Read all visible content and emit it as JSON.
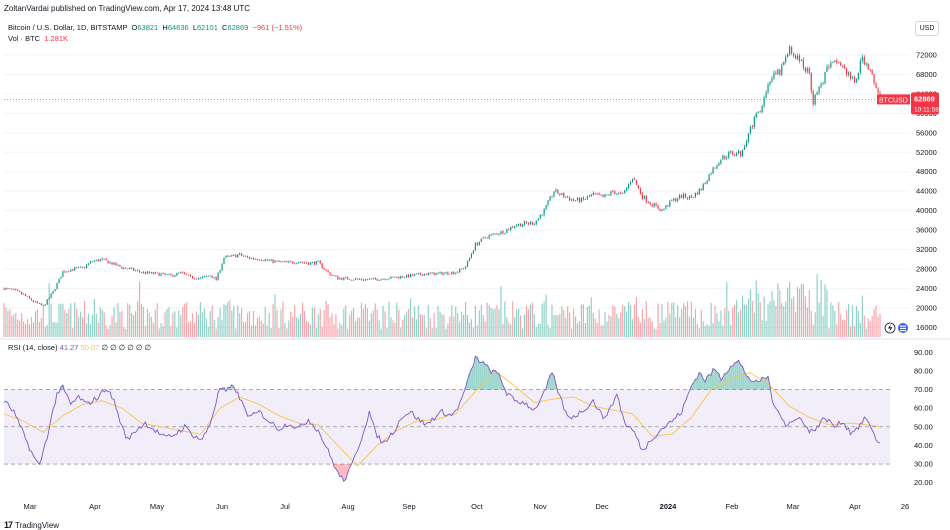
{
  "header": {
    "text": "ZoltanVardai published on TradingView.com, Apr 17, 2024 13:48 UTC"
  },
  "legend": {
    "symbol": "Bitcoin / U.S. Dollar, 1D, BITSTAMP",
    "open_label": "O",
    "open": "63821",
    "high_label": "H",
    "high": "64636",
    "low_label": "L",
    "low": "62101",
    "close_label": "C",
    "close": "62869",
    "change": "−961 (−1.51%)",
    "vol_label": "Vol · BTC",
    "vol": "1.281K"
  },
  "rsi_legend": {
    "label": "RSI (14, close)",
    "v1": "41.27",
    "v2": "50.07",
    "placeholders": "∅ ∅ ∅ ∅ ∅ ∅"
  },
  "currency_button": "USD",
  "price_tag": {
    "symbol": "BTCUSD",
    "price": "62869",
    "countdown": "10:11:58"
  },
  "footer": {
    "logo": "17",
    "brand": "TradingView"
  },
  "colors": {
    "up": "#089981",
    "down": "#f23645",
    "rsi": "#7e57c2",
    "rsi_ma": "#f5c451",
    "band": "#7e57c2"
  },
  "chart_data": {
    "type": "candlestick",
    "price_axis": {
      "ticks": [
        72000,
        68000,
        64000,
        60000,
        56000,
        52000,
        48000,
        44000,
        40000,
        36000,
        32000,
        28000,
        24000,
        20000,
        16000
      ],
      "ylim": [
        14000,
        75500
      ]
    },
    "x_ticks": [
      "Mar",
      "Apr",
      "May",
      "Jun",
      "Jul",
      "Aug",
      "Sep",
      "Oct",
      "Nov",
      "Dec",
      "2024",
      "Feb",
      "Mar",
      "Apr",
      "26"
    ],
    "close_series": [
      [
        0,
        24000
      ],
      [
        5,
        23600
      ],
      [
        10,
        22700
      ],
      [
        15,
        21300
      ],
      [
        20,
        20300
      ],
      [
        25,
        23300
      ],
      [
        30,
        27400
      ],
      [
        35,
        28000
      ],
      [
        40,
        28200
      ],
      [
        45,
        29600
      ],
      [
        50,
        29900
      ],
      [
        55,
        29100
      ],
      [
        60,
        28300
      ],
      [
        65,
        27900
      ],
      [
        70,
        27300
      ],
      [
        75,
        27100
      ],
      [
        80,
        26900
      ],
      [
        85,
        26600
      ],
      [
        90,
        27200
      ],
      [
        95,
        26300
      ],
      [
        100,
        26100
      ],
      [
        105,
        26700
      ],
      [
        108,
        25800
      ],
      [
        112,
        30300
      ],
      [
        116,
        30600
      ],
      [
        120,
        30900
      ],
      [
        125,
        30200
      ],
      [
        130,
        30100
      ],
      [
        135,
        29700
      ],
      [
        140,
        29400
      ],
      [
        145,
        29300
      ],
      [
        150,
        29500
      ],
      [
        155,
        29200
      ],
      [
        160,
        29300
      ],
      [
        165,
        27200
      ],
      [
        170,
        26100
      ],
      [
        175,
        26000
      ],
      [
        180,
        25900
      ],
      [
        185,
        25800
      ],
      [
        190,
        25900
      ],
      [
        195,
        26100
      ],
      [
        200,
        26300
      ],
      [
        205,
        26500
      ],
      [
        210,
        26800
      ],
      [
        215,
        27000
      ],
      [
        220,
        27000
      ],
      [
        225,
        27200
      ],
      [
        230,
        27300
      ],
      [
        235,
        28500
      ],
      [
        240,
        33000
      ],
      [
        245,
        34500
      ],
      [
        250,
        35200
      ],
      [
        255,
        35800
      ],
      [
        260,
        37000
      ],
      [
        265,
        37300
      ],
      [
        270,
        37500
      ],
      [
        275,
        40000
      ],
      [
        280,
        44000
      ],
      [
        285,
        43000
      ],
      [
        290,
        42100
      ],
      [
        295,
        42200
      ],
      [
        300,
        43300
      ],
      [
        305,
        42700
      ],
      [
        310,
        43900
      ],
      [
        315,
        43200
      ],
      [
        320,
        46900
      ],
      [
        325,
        42900
      ],
      [
        330,
        41300
      ],
      [
        335,
        40000
      ],
      [
        340,
        42000
      ],
      [
        345,
        43000
      ],
      [
        350,
        42700
      ],
      [
        355,
        44500
      ],
      [
        360,
        48000
      ],
      [
        365,
        50700
      ],
      [
        370,
        51800
      ],
      [
        375,
        51700
      ],
      [
        380,
        57000
      ],
      [
        385,
        61000
      ],
      [
        390,
        67000
      ],
      [
        395,
        68500
      ],
      [
        400,
        73000
      ],
      [
        405,
        71000
      ],
      [
        410,
        68000
      ],
      [
        412,
        62500
      ],
      [
        415,
        65000
      ],
      [
        420,
        69800
      ],
      [
        425,
        70500
      ],
      [
        430,
        68000
      ],
      [
        433,
        66000
      ],
      [
        437,
        71500
      ],
      [
        441,
        69000
      ],
      [
        444,
        64700
      ],
      [
        446,
        62869
      ]
    ],
    "volume": {
      "unit": "BTC",
      "last": 1281
    },
    "rsi": {
      "period": 14,
      "last": 41.27,
      "ma_last": 50.07,
      "levels": [
        70,
        50,
        30
      ],
      "ticks": [
        90,
        80,
        70,
        60,
        50,
        40,
        30,
        20
      ],
      "values": [
        [
          0,
          64
        ],
        [
          5,
          58
        ],
        [
          10,
          46
        ],
        [
          15,
          34
        ],
        [
          18,
          29
        ],
        [
          22,
          45
        ],
        [
          27,
          68
        ],
        [
          30,
          71
        ],
        [
          34,
          62
        ],
        [
          38,
          66
        ],
        [
          42,
          62
        ],
        [
          48,
          66
        ],
        [
          52,
          71
        ],
        [
          56,
          64
        ],
        [
          60,
          50
        ],
        [
          63,
          43
        ],
        [
          67,
          48
        ],
        [
          72,
          52
        ],
        [
          77,
          48
        ],
        [
          82,
          44
        ],
        [
          87,
          46
        ],
        [
          92,
          50
        ],
        [
          97,
          45
        ],
        [
          101,
          43
        ],
        [
          105,
          52
        ],
        [
          110,
          71
        ],
        [
          113,
          69
        ],
        [
          117,
          72
        ],
        [
          121,
          63
        ],
        [
          125,
          55
        ],
        [
          130,
          58
        ],
        [
          135,
          53
        ],
        [
          140,
          49
        ],
        [
          145,
          52
        ],
        [
          150,
          49
        ],
        [
          155,
          54
        ],
        [
          160,
          48
        ],
        [
          165,
          37
        ],
        [
          170,
          25
        ],
        [
          173,
          21
        ],
        [
          177,
          29
        ],
        [
          182,
          44
        ],
        [
          186,
          58
        ],
        [
          189,
          47
        ],
        [
          193,
          41
        ],
        [
          198,
          47
        ],
        [
          203,
          56
        ],
        [
          207,
          58
        ],
        [
          211,
          54
        ],
        [
          215,
          51
        ],
        [
          219,
          55
        ],
        [
          223,
          58
        ],
        [
          228,
          56
        ],
        [
          232,
          62
        ],
        [
          236,
          74
        ],
        [
          240,
          87
        ],
        [
          244,
          84
        ],
        [
          248,
          80
        ],
        [
          252,
          78
        ],
        [
          256,
          68
        ],
        [
          260,
          64
        ],
        [
          265,
          63
        ],
        [
          270,
          59
        ],
        [
          275,
          68
        ],
        [
          279,
          79
        ],
        [
          283,
          66
        ],
        [
          287,
          55
        ],
        [
          291,
          56
        ],
        [
          295,
          59
        ],
        [
          300,
          64
        ],
        [
          305,
          55
        ],
        [
          309,
          60
        ],
        [
          312,
          68
        ],
        [
          316,
          52
        ],
        [
          321,
          47
        ],
        [
          325,
          37
        ],
        [
          330,
          44
        ],
        [
          335,
          49
        ],
        [
          340,
          53
        ],
        [
          345,
          58
        ],
        [
          350,
          72
        ],
        [
          354,
          79
        ],
        [
          357,
          75
        ],
        [
          362,
          81
        ],
        [
          365,
          76
        ],
        [
          370,
          83
        ],
        [
          374,
          85
        ],
        [
          378,
          78
        ],
        [
          382,
          73
        ],
        [
          385,
          75
        ],
        [
          389,
          77
        ],
        [
          392,
          60
        ],
        [
          395,
          58
        ],
        [
          398,
          51
        ],
        [
          402,
          53
        ],
        [
          406,
          55
        ],
        [
          410,
          47
        ],
        [
          414,
          50
        ],
        [
          418,
          55
        ],
        [
          423,
          50
        ],
        [
          427,
          53
        ],
        [
          431,
          47
        ],
        [
          435,
          50
        ],
        [
          439,
          55
        ],
        [
          443,
          45
        ],
        [
          446,
          41
        ]
      ],
      "ma_values": [
        [
          0,
          57
        ],
        [
          10,
          53
        ],
        [
          20,
          47
        ],
        [
          30,
          56
        ],
        [
          40,
          62
        ],
        [
          50,
          64
        ],
        [
          60,
          60
        ],
        [
          70,
          52
        ],
        [
          80,
          50
        ],
        [
          90,
          48
        ],
        [
          100,
          46
        ],
        [
          110,
          60
        ],
        [
          120,
          66
        ],
        [
          130,
          62
        ],
        [
          140,
          56
        ],
        [
          150,
          52
        ],
        [
          160,
          51
        ],
        [
          170,
          40
        ],
        [
          180,
          29
        ],
        [
          190,
          40
        ],
        [
          200,
          48
        ],
        [
          210,
          53
        ],
        [
          220,
          54
        ],
        [
          230,
          57
        ],
        [
          240,
          69
        ],
        [
          250,
          80
        ],
        [
          260,
          72
        ],
        [
          270,
          63
        ],
        [
          280,
          65
        ],
        [
          290,
          66
        ],
        [
          300,
          61
        ],
        [
          310,
          59
        ],
        [
          320,
          57
        ],
        [
          330,
          45
        ],
        [
          340,
          46
        ],
        [
          350,
          55
        ],
        [
          360,
          70
        ],
        [
          370,
          76
        ],
        [
          380,
          79
        ],
        [
          390,
          72
        ],
        [
          400,
          61
        ],
        [
          410,
          55
        ],
        [
          420,
          51
        ],
        [
          430,
          52
        ],
        [
          440,
          51
        ],
        [
          446,
          50.07
        ]
      ]
    }
  }
}
